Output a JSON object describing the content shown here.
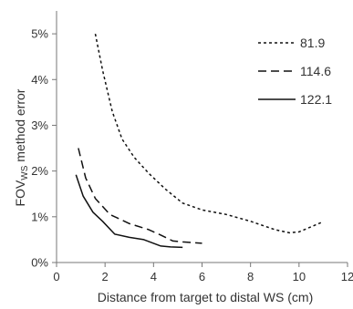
{
  "chart_data": {
    "type": "line",
    "xlabel": "Distance from target to distal WS (cm)",
    "ylabel_prefix": "FOV",
    "ylabel_subscript": "WS",
    "ylabel_suffix": " method error",
    "xlim": [
      0,
      12
    ],
    "ylim": [
      0,
      5.5
    ],
    "xticks": [
      0,
      2,
      4,
      6,
      8,
      10,
      12
    ],
    "yticks": [
      0,
      1,
      2,
      3,
      4,
      5
    ],
    "xtick_labels": [
      "0",
      "2",
      "4",
      "6",
      "8",
      "10",
      "12"
    ],
    "ytick_labels": [
      "0%",
      "1%",
      "2%",
      "3%",
      "4%",
      "5%"
    ],
    "legend_position": "top-right",
    "grid": false,
    "series": [
      {
        "name": "81.9",
        "style": "dotted",
        "x": [
          1.6,
          1.9,
          2.3,
          2.7,
          3.2,
          3.8,
          4.5,
          5.2,
          6.0,
          7.0,
          8.0,
          9.0,
          9.6,
          10.0,
          10.9
        ],
        "y": [
          5.0,
          4.2,
          3.3,
          2.7,
          2.3,
          1.95,
          1.6,
          1.3,
          1.15,
          1.05,
          0.9,
          0.72,
          0.65,
          0.67,
          0.87
        ]
      },
      {
        "name": "114.6",
        "style": "dashed",
        "x": [
          0.9,
          1.2,
          1.6,
          2.2,
          3.0,
          3.8,
          4.3,
          4.8,
          5.2,
          6.0
        ],
        "y": [
          2.5,
          1.85,
          1.4,
          1.05,
          0.85,
          0.72,
          0.6,
          0.47,
          0.45,
          0.42
        ]
      },
      {
        "name": "122.1",
        "style": "solid",
        "x": [
          0.8,
          1.1,
          1.5,
          1.9,
          2.4,
          3.0,
          3.6,
          4.0,
          4.3,
          4.7,
          5.2
        ],
        "y": [
          1.92,
          1.45,
          1.1,
          0.9,
          0.62,
          0.55,
          0.5,
          0.42,
          0.36,
          0.34,
          0.33
        ]
      }
    ]
  }
}
